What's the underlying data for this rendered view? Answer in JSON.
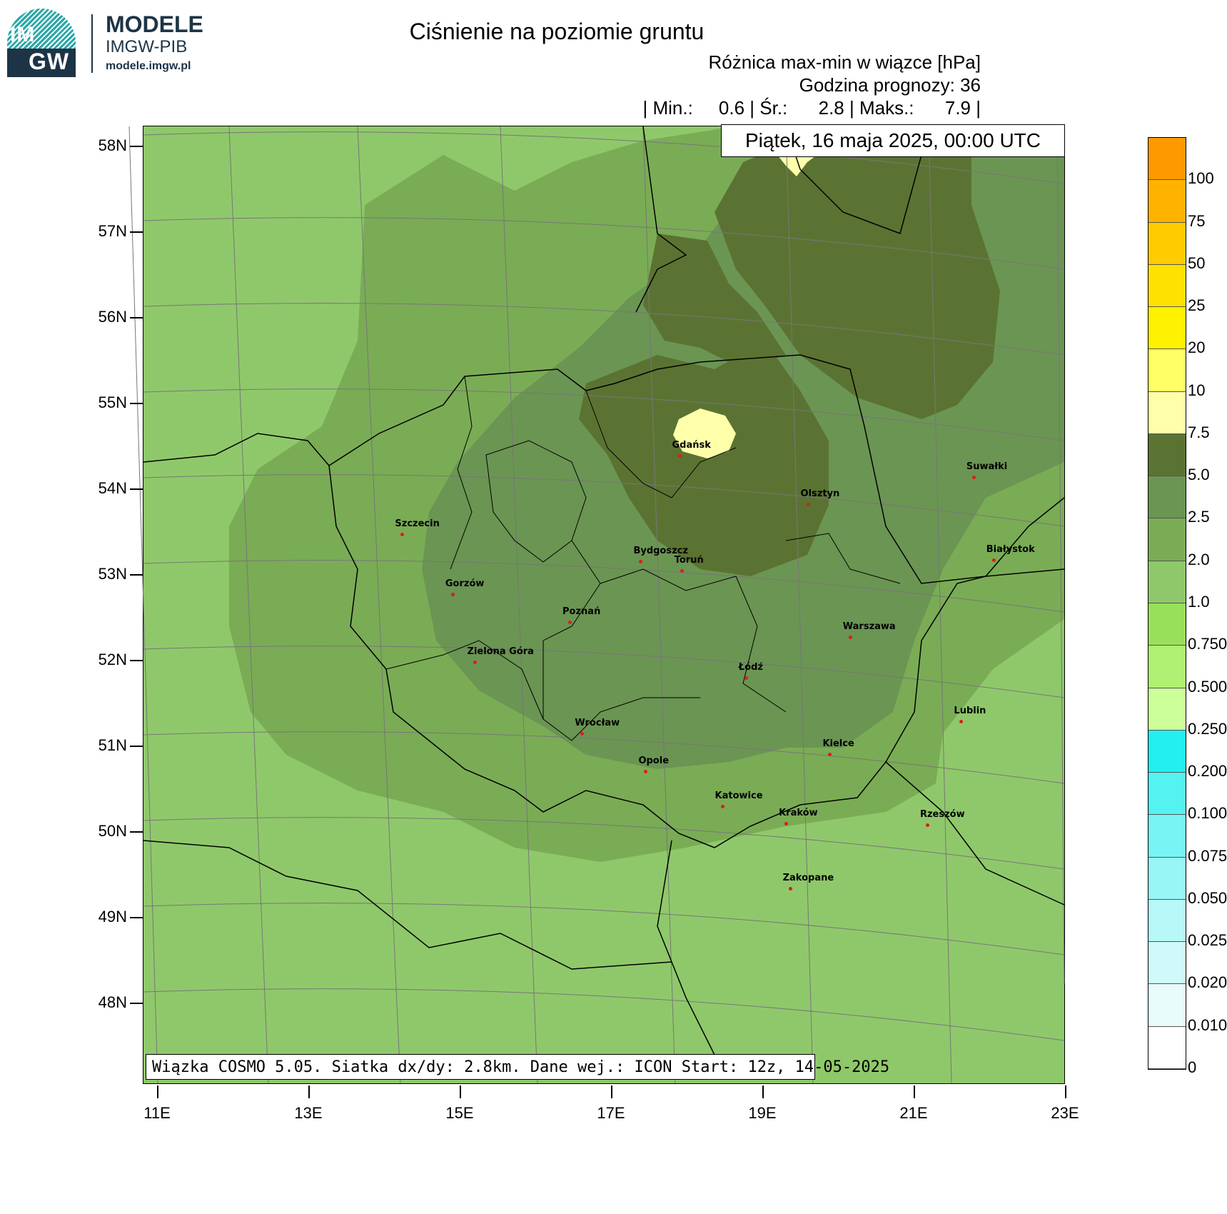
{
  "logo": {
    "line1": "MODELE",
    "line2": "IMGW-PIB",
    "line3": "modele.imgw.pl",
    "emblem_top": "IM",
    "emblem_bottom": "GW"
  },
  "title": "Ciśnienie na poziomie gruntu",
  "subtitle": "Różnica max-min w wiązce [hPa]",
  "forecast_hour": "Godzina prognozy: 36",
  "stats": "| Min.:     0.6 | Śr.:      2.8 | Maks.:      7.9 |",
  "date": "Piątek, 16 maja 2025, 00:00 UTC",
  "footer": "Wiązka COSMO 5.05. Siatka dx/dy: 2.8km. Dane wej.: ICON Start: 12z, 14-05-2025",
  "lat_labels": [
    "58N",
    "57N",
    "56N",
    "55N",
    "54N",
    "53N",
    "52N",
    "51N",
    "50N",
    "49N",
    "48N"
  ],
  "lon_labels": [
    "11E",
    "13E",
    "15E",
    "17E",
    "19E",
    "21E",
    "23E"
  ],
  "cities": [
    {
      "name": "Gdańsk",
      "lat": 54.35,
      "lon": 18.65
    },
    {
      "name": "Olsztyn",
      "lat": 53.78,
      "lon": 20.49
    },
    {
      "name": "Suwałki",
      "lat": 54.1,
      "lon": 22.93
    },
    {
      "name": "Białystok",
      "lat": 53.13,
      "lon": 23.16
    },
    {
      "name": "Szczecin",
      "lat": 53.43,
      "lon": 14.55
    },
    {
      "name": "Bydgoszcz",
      "lat": 53.12,
      "lon": 18.01
    },
    {
      "name": "Toruń",
      "lat": 53.01,
      "lon": 18.6
    },
    {
      "name": "Gorzów",
      "lat": 52.73,
      "lon": 15.24
    },
    {
      "name": "Poznań",
      "lat": 52.41,
      "lon": 16.93
    },
    {
      "name": "Warszawa",
      "lat": 52.23,
      "lon": 21.01
    },
    {
      "name": "Zielona Góra",
      "lat": 51.94,
      "lon": 15.51
    },
    {
      "name": "Łódź",
      "lat": 51.76,
      "lon": 19.46
    },
    {
      "name": "Lublin",
      "lat": 51.25,
      "lon": 22.57
    },
    {
      "name": "Wrocław",
      "lat": 51.11,
      "lon": 17.03
    },
    {
      "name": "Kielce",
      "lat": 50.87,
      "lon": 20.63
    },
    {
      "name": "Opole",
      "lat": 50.67,
      "lon": 17.93
    },
    {
      "name": "Rzeszów",
      "lat": 50.04,
      "lon": 22.0
    },
    {
      "name": "Katowice",
      "lat": 50.26,
      "lon": 19.02
    },
    {
      "name": "Kraków",
      "lat": 50.06,
      "lon": 19.94
    },
    {
      "name": "Zakopane",
      "lat": 49.3,
      "lon": 19.95
    }
  ],
  "colorbar": [
    {
      "label": "100",
      "color": "#ff9900"
    },
    {
      "label": "75",
      "color": "#ffb300"
    },
    {
      "label": "50",
      "color": "#ffcc00"
    },
    {
      "label": "25",
      "color": "#ffe100"
    },
    {
      "label": "20",
      "color": "#fff200"
    },
    {
      "label": "10",
      "color": "#ffff66"
    },
    {
      "label": "7.5",
      "color": "#ffffaa"
    },
    {
      "label": "5.0",
      "color": "#5b7332"
    },
    {
      "label": "2.5",
      "color": "#6b9553"
    },
    {
      "label": "2.0",
      "color": "#7aac55"
    },
    {
      "label": "1.0",
      "color": "#8fc86a"
    },
    {
      "label": "0.750",
      "color": "#99e05a"
    },
    {
      "label": "0.500",
      "color": "#b0f073"
    },
    {
      "label": "0.250",
      "color": "#ccff99"
    },
    {
      "label": "0.200",
      "color": "#22f0f0"
    },
    {
      "label": "0.100",
      "color": "#55f2f2"
    },
    {
      "label": "0.075",
      "color": "#77f4f4"
    },
    {
      "label": "0.050",
      "color": "#99f6f6"
    },
    {
      "label": "0.025",
      "color": "#b8f8f8"
    },
    {
      "label": "0.020",
      "color": "#d0fafa"
    },
    {
      "label": "0.010",
      "color": "#e8fcfc"
    },
    {
      "label": "0",
      "color": "#ffffff"
    }
  ]
}
